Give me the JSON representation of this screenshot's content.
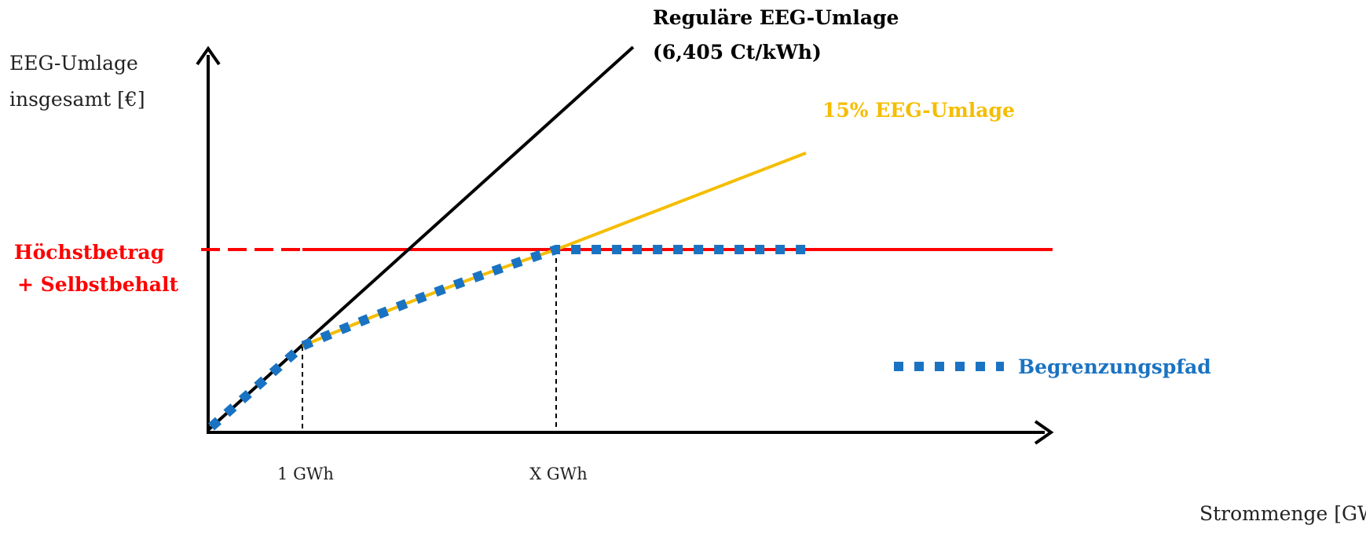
{
  "y_axis_label": [
    "EEG-Umlage",
    "insgesamt [€]"
  ],
  "x_axis_label": "Strommenge [GWh]",
  "x_ticks": [
    "1 GWh",
    "X GWh"
  ],
  "lines": {
    "regular": {
      "label": [
        "Reguläre EEG-Umlage",
        "(6,405 Ct/kWh)"
      ],
      "color": "#000000"
    },
    "reduced": {
      "label": "15% EEG-Umlage",
      "color": "#f5bd00"
    },
    "cap": {
      "label": [
        "Höchstbetrag",
        "+ Selbstbehalt"
      ],
      "color": "#ff0000"
    },
    "path": {
      "label": "Begrenzungspfad",
      "color": "#1a73c2"
    }
  }
}
